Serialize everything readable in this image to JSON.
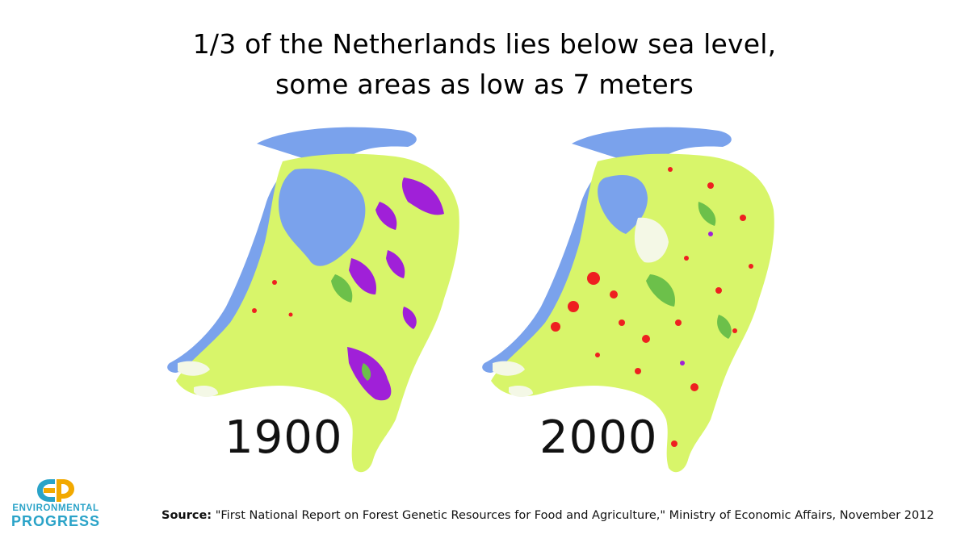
{
  "title": {
    "line1": "1/3 of the Netherlands lies below sea level,",
    "line2": "some areas as low as 7 meters"
  },
  "maps": [
    {
      "year": "1900"
    },
    {
      "year": "2000"
    }
  ],
  "legend_colors": {
    "water": "#7aa2ec",
    "agriculture": "#d8f56a",
    "forest": "#6cc04a",
    "heath": "#a020d8",
    "urban": "#ee2020",
    "coast": "#f4f8e6"
  },
  "logo": {
    "line1": "ENVIRONMENTAL",
    "line2": "PROGRESS",
    "color": "#2aa3c8",
    "accent": "#f2a900"
  },
  "source": {
    "label": "Source:",
    "text": "\"First National Report on Forest Genetic Resources for Food and Agriculture,\" Ministry of Economic Affairs, November 2012"
  }
}
